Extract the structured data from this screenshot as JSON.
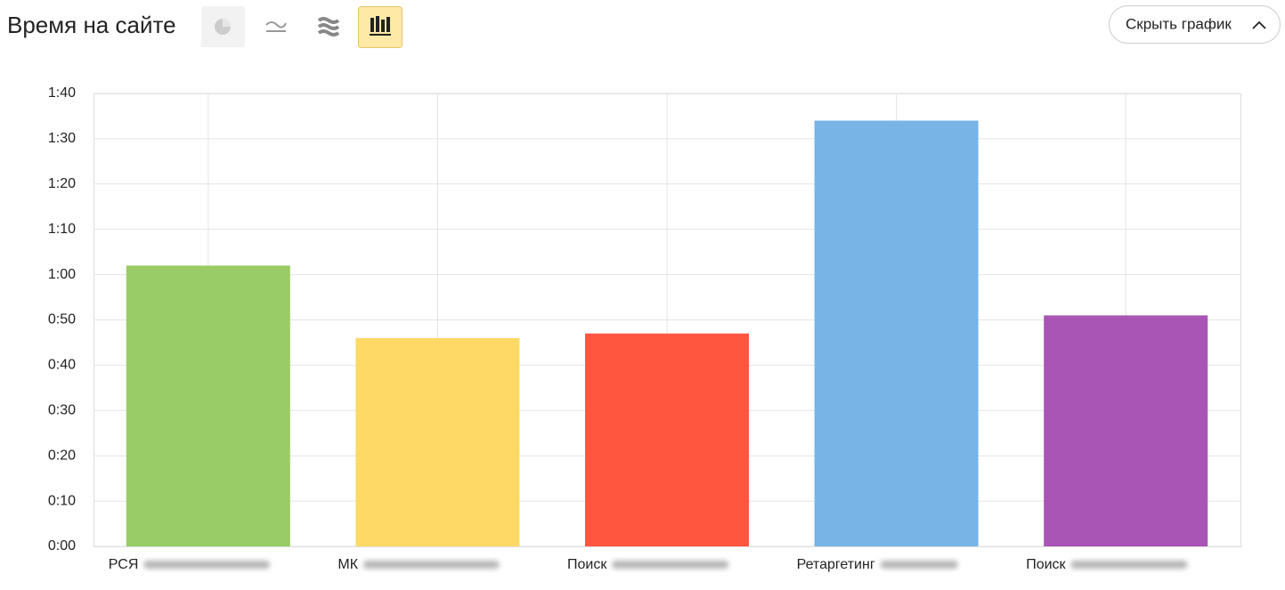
{
  "chart_data": {
    "type": "bar",
    "title": "Время на сайте",
    "categories": [
      "РСЯ",
      "МК",
      "Поиск",
      "Ретаргетинг",
      "Поиск"
    ],
    "values": [
      62,
      46,
      47,
      94,
      51
    ],
    "colors": [
      "#99cc66",
      "#fed966",
      "#fe5740",
      "#78b4e5",
      "#a855b5"
    ],
    "ylim": [
      0,
      100
    ],
    "yticks": [
      {
        "value": 0,
        "label": "0:00"
      },
      {
        "value": 10,
        "label": "0:10"
      },
      {
        "value": 20,
        "label": "0:20"
      },
      {
        "value": 30,
        "label": "0:30"
      },
      {
        "value": 40,
        "label": "0:40"
      },
      {
        "value": 50,
        "label": "0:50"
      },
      {
        "value": 60,
        "label": "1:00"
      },
      {
        "value": 70,
        "label": "1:10"
      },
      {
        "value": 80,
        "label": "1:20"
      },
      {
        "value": 90,
        "label": "1:30"
      },
      {
        "value": 100,
        "label": "1:40"
      }
    ],
    "grid": true
  },
  "controls": {
    "hide_button": "Скрыть график"
  }
}
